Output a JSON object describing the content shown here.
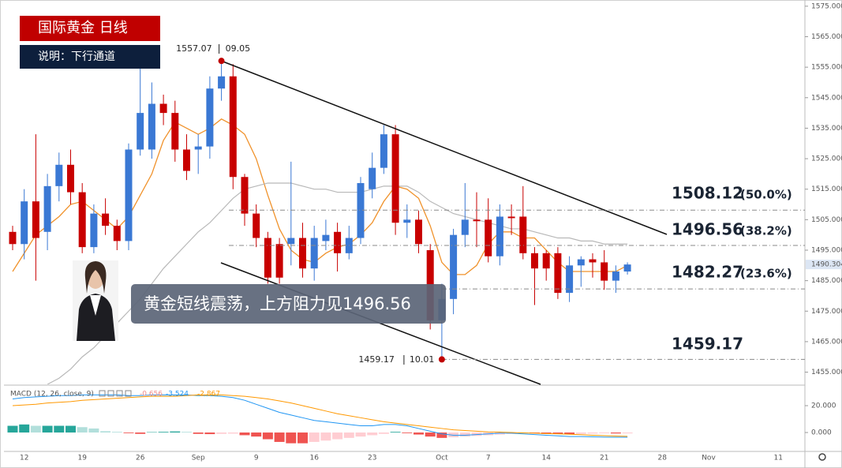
{
  "header": {
    "title": "国际黄金 日线",
    "note": "说明：下行通道"
  },
  "callout": "黄金短线震荡，上方阻力见1496.56",
  "chart_data": {
    "type": "candlestick",
    "x_labels": [
      "12",
      "19",
      "26",
      "Sep",
      "9",
      "16",
      "23",
      "Oct",
      "7",
      "14",
      "21",
      "28",
      "Nov",
      "11"
    ],
    "open": [
      1501,
      1497,
      1511,
      1501,
      1516,
      1523,
      1514,
      1496,
      1507,
      1503,
      1498,
      1528,
      1528,
      1543,
      1540,
      1528,
      1528,
      1529,
      1548,
      1552,
      1519,
      1507,
      1499,
      1497,
      1497,
      1499,
      1489,
      1498,
      1501,
      1494,
      1499,
      1515,
      1522,
      1533,
      1504,
      1505,
      1495,
      1472,
      1479,
      1500,
      1505,
      1505,
      1493,
      1506,
      1506,
      1494,
      1494,
      1494,
      1481,
      1490,
      1492,
      1491,
      1485,
      1488
    ],
    "high": [
      1503,
      1515,
      1533,
      1520,
      1527,
      1528,
      1517,
      1510,
      1512,
      1505,
      1530,
      1556,
      1550,
      1546,
      1544,
      1533,
      1533,
      1552,
      1557.07,
      1556,
      1520,
      1510,
      1501,
      1499,
      1524,
      1504,
      1503,
      1505,
      1504,
      1503,
      1519,
      1527,
      1536,
      1536,
      1510,
      1508,
      1497,
      1484,
      1502,
      1517,
      1514,
      1512,
      1510,
      1510,
      1516,
      1496,
      1495,
      1496,
      1493,
      1493,
      1494,
      1495,
      1490,
      1491
    ],
    "low": [
      1495,
      1492,
      1485,
      1495,
      1511,
      1510,
      1494,
      1494,
      1500,
      1495,
      1495,
      1526,
      1525,
      1536,
      1524,
      1518,
      1520,
      1525,
      1544,
      1515,
      1503,
      1496,
      1484,
      1484,
      1490,
      1486,
      1485,
      1495,
      1488,
      1492,
      1497,
      1512,
      1520,
      1500,
      1499,
      1494,
      1469,
      1459.17,
      1474,
      1496,
      1496,
      1491,
      1490,
      1500,
      1492,
      1477,
      1485,
      1479,
      1478,
      1483,
      1486,
      1482,
      1481,
      1487
    ],
    "close": [
      1497,
      1511,
      1499,
      1516,
      1523,
      1514,
      1496,
      1507,
      1503,
      1498,
      1528,
      1540,
      1543,
      1540,
      1528,
      1521,
      1529,
      1548,
      1552,
      1519,
      1507,
      1499,
      1486,
      1486,
      1499,
      1489,
      1499,
      1500,
      1494,
      1499,
      1517,
      1522,
      1533,
      1504,
      1505,
      1497,
      1472,
      1479,
      1500,
      1505,
      1504.5,
      1493,
      1506,
      1505.5,
      1494,
      1489,
      1489,
      1481,
      1490,
      1492,
      1491,
      1485,
      1488,
      1490.3
    ],
    "up_color": "#3a78d4",
    "down_color": "#c80000",
    "ma": [
      {
        "color": "#f0922b",
        "values": [
          1488,
          1494,
          1500,
          1503,
          1506,
          1510,
          1511,
          1508,
          1505,
          1502,
          1506,
          1513,
          1520,
          1531,
          1537,
          1535,
          1533,
          1535,
          1538,
          1536,
          1533,
          1525,
          1513,
          1502,
          1495,
          1492,
          1491,
          1494,
          1496,
          1497,
          1500,
          1504,
          1511,
          1516,
          1515,
          1512,
          1503,
          1491,
          1487,
          1487,
          1490,
          1497,
          1501,
          1501,
          1499,
          1499,
          1495,
          1491,
          1488,
          1488,
          1488,
          1488,
          1488,
          1490
        ]
      },
      {
        "color": "#b8b8b8",
        "values": [
          null,
          null,
          null,
          1451,
          1453,
          1456,
          1460,
          1463,
          1467,
          1471,
          1475,
          1479,
          1484,
          1489,
          1493,
          1497,
          1501,
          1504,
          1508,
          1512,
          1515,
          1516,
          1517,
          1517,
          1517,
          1516,
          1515,
          1515,
          1514,
          1514,
          1514,
          1515,
          1516,
          1516,
          1516,
          1514,
          1511,
          1509,
          1507,
          1506,
          1505,
          1504,
          1503,
          1502,
          1502,
          1501,
          1500,
          1499,
          1499,
          1498,
          1498,
          1497,
          1497,
          1497
        ]
      }
    ],
    "ylim": [
      1451,
      1576
    ],
    "yticks": [
      {
        "value": 1575,
        "label": "1575.000"
      },
      {
        "value": 1565,
        "label": "1565.000"
      },
      {
        "value": 1555,
        "label": "1555.000"
      },
      {
        "value": 1545,
        "label": "1545.000"
      },
      {
        "value": 1535,
        "label": "1535.000"
      },
      {
        "value": 1525,
        "label": "1525.000"
      },
      {
        "value": 1515,
        "label": "1515.000"
      },
      {
        "value": 1505,
        "label": "1505.000"
      },
      {
        "value": 1495,
        "label": "1495.000"
      },
      {
        "value": 1485,
        "label": "1485.000"
      },
      {
        "value": 1475,
        "label": "1475.000"
      },
      {
        "value": 1465,
        "label": "1465.000"
      },
      {
        "value": 1455,
        "label": "1455.000"
      }
    ],
    "last_price": {
      "value": 1490.304,
      "label": "1490.304"
    },
    "high_marker": {
      "price": 1557.07,
      "date": "09.05"
    },
    "low_marker": {
      "price": 1459.17,
      "date": "10.01"
    },
    "fib_levels": [
      {
        "value": 1508.12,
        "label": "(50.0%)"
      },
      {
        "value": 1496.56,
        "label": "(38.2%)"
      },
      {
        "value": 1482.27,
        "label": "(23.6%)"
      },
      {
        "value": 1459.17
      }
    ],
    "macd": {
      "label": "MACD (12, 26, close, 9)",
      "histogram": [
        5,
        6,
        5,
        5,
        5,
        5,
        4,
        3,
        1,
        0.5,
        -0.5,
        -1,
        0.3,
        0.5,
        0.8,
        0.5,
        -1,
        -1.2,
        -1,
        -0.8,
        -2,
        -3,
        -5,
        -7,
        -8,
        -8,
        -7,
        -6,
        -5,
        -4,
        -3,
        -2,
        -1,
        0.5,
        -0.5,
        -1.5,
        -3,
        -4,
        -3.5,
        -3,
        -2.5,
        -2,
        -1.5,
        -1,
        -0.5,
        -0.5,
        -1,
        -1,
        -1.2,
        -1,
        -0.8,
        -0.6,
        -0.7,
        -0.656
      ],
      "histogram_colors": [
        "#26a69a",
        "#b2dfdb",
        "#ef5350",
        "#ffcdd2"
      ],
      "histogram_label_color": "#f28b8b",
      "macd": {
        "color": "#2196f3",
        "values": [
          25,
          26,
          26.5,
          27,
          27.5,
          27.5,
          28,
          28,
          28,
          28,
          27.5,
          27.5,
          28,
          28,
          28,
          28,
          27.5,
          27.5,
          27,
          26,
          24,
          21,
          18,
          15,
          13,
          11,
          9,
          8,
          7,
          6,
          5,
          5,
          6,
          6,
          5,
          3,
          1,
          -1,
          -2,
          -2,
          -1.5,
          -1,
          -0.5,
          -0.5,
          -1,
          -1.5,
          -2,
          -2.5,
          -3,
          -3,
          -3.2,
          -3.4,
          -3.5,
          -3.524
        ]
      },
      "signal": {
        "color": "#ff9800",
        "values": [
          20,
          20.5,
          21,
          22,
          22.5,
          23,
          24,
          24.5,
          25,
          25.5,
          26,
          26.5,
          27,
          27,
          27,
          27.5,
          28,
          28,
          28,
          27.5,
          27,
          26,
          25,
          23.5,
          22,
          20,
          18,
          16,
          14,
          12.5,
          11,
          9.5,
          8,
          7,
          6,
          5,
          4,
          3,
          2,
          1.5,
          1,
          0.5,
          0.3,
          0,
          -0.3,
          -0.5,
          -0.8,
          -1,
          -1.3,
          -1.6,
          -2,
          -2.3,
          -2.6,
          -2.867
        ]
      },
      "ylim": [
        -12.9,
        34.1
      ],
      "yticks": [
        {
          "value": 20,
          "label": "20.000"
        },
        {
          "value": 0,
          "label": "0.000"
        }
      ]
    }
  }
}
